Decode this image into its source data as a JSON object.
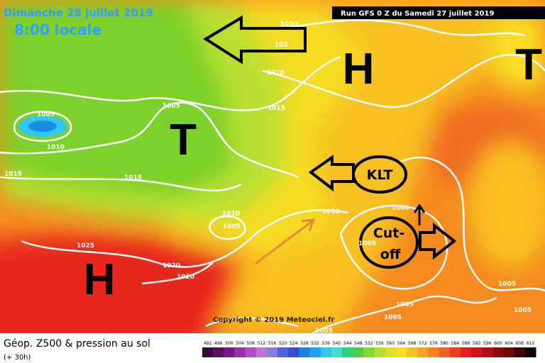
{
  "header": {
    "date": "Dimanche 28 juillet 2019",
    "time": "8:00 locale",
    "run": "Run GFS 0 Z du Samedi 27 juillet 2019"
  },
  "map": {
    "systems": [
      "H",
      "H",
      "T",
      "T"
    ],
    "klt": "KLT",
    "cutoff": [
      "Cut-",
      "off"
    ],
    "isobar_labels": [
      "1030",
      "102",
      "1020",
      "1015",
      "1005",
      "1010",
      "1005",
      "1015",
      "1015",
      "1010",
      "1005",
      "1010",
      "1025",
      "1020",
      "1020",
      "1000",
      "1005",
      "1005",
      "1005",
      "1005",
      "1005",
      "1005"
    ],
    "copyright": "Copyright © 2019 Meteociel.fr"
  },
  "footer": {
    "title": "Géop. Z500 & pression au sol",
    "lead": "(+ 30h)"
  },
  "legend": {
    "values": [
      492,
      496,
      500,
      504,
      508,
      512,
      516,
      520,
      524,
      528,
      532,
      536,
      540,
      544,
      548,
      552,
      556,
      560,
      564,
      568,
      572,
      576,
      580,
      584,
      588,
      592,
      596,
      600,
      604,
      608,
      612
    ],
    "colors": [
      "#3a0a3a",
      "#5a1060",
      "#7a1a8a",
      "#9a30b0",
      "#b050c8",
      "#c070d8",
      "#8080e0",
      "#5060e0",
      "#3050d0",
      "#2080e0",
      "#20a0f0",
      "#30c8f0",
      "#40e0d0",
      "#30d080",
      "#50d040",
      "#80d830",
      "#b0e030",
      "#e0e020",
      "#f8e020",
      "#f8c020",
      "#f8a020",
      "#f88020",
      "#f06020",
      "#e84020",
      "#e02020",
      "#c81818",
      "#b01010",
      "#900808",
      "#700808",
      "#400404",
      "#100000"
    ]
  }
}
